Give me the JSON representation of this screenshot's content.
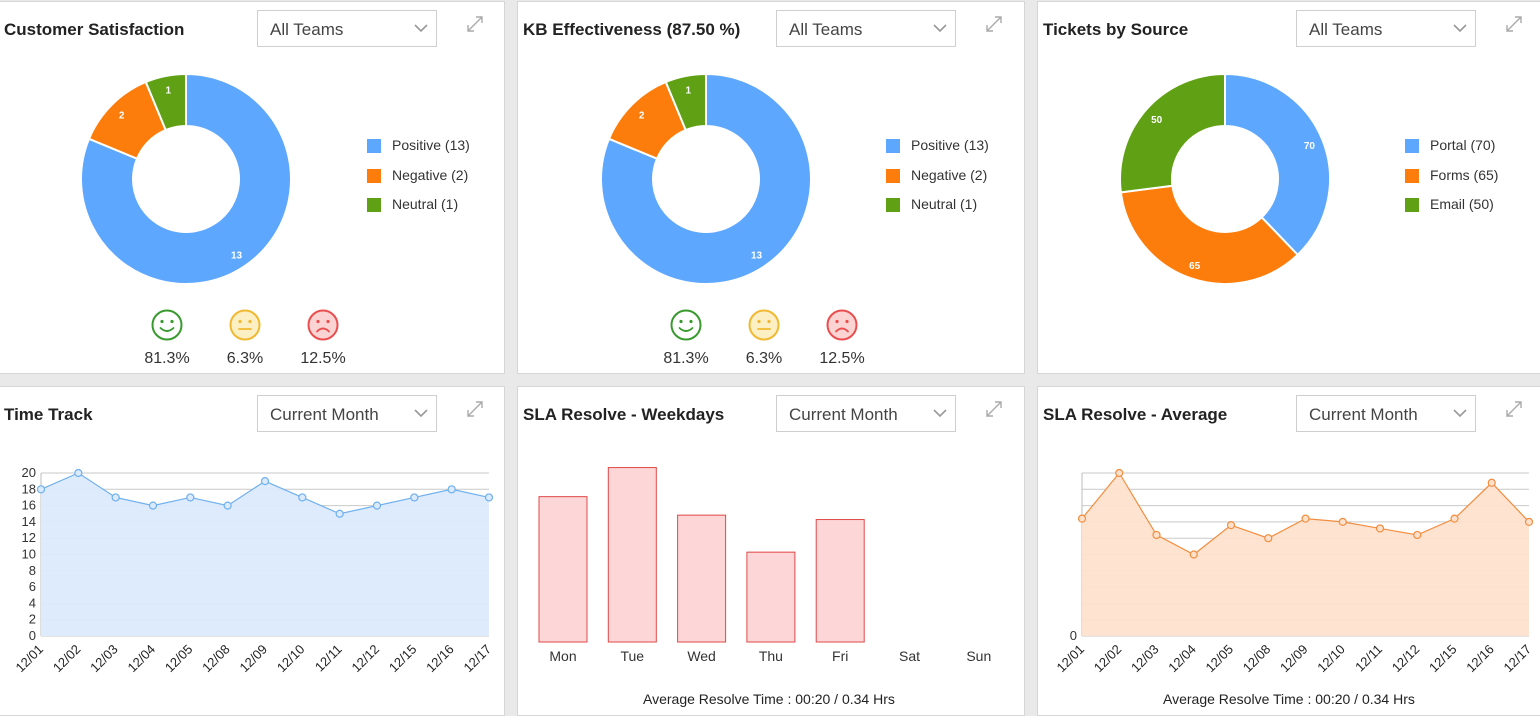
{
  "colors": {
    "positive": "#5ea7fe",
    "negative": "#fc7d0b",
    "neutral": "#60a014",
    "line_blue": "#6fb0ee",
    "fill_blue": "#dbeafc",
    "line_orange": "#f38d3f",
    "fill_orange": "#fde1cd",
    "bar_fill": "#fdd6d7",
    "bar_stroke": "#e04848",
    "happy": "#3a9a2f",
    "meh": "#f0b931",
    "sad": "#ea4f4f"
  },
  "panels": {
    "csat": {
      "title": "Customer Satisfaction",
      "filter": "All Teams",
      "legend": [
        {
          "label": "Positive (13)",
          "color": "#5ea7fe"
        },
        {
          "label": "Negative (2)",
          "color": "#fc7d0b"
        },
        {
          "label": "Neutral (1)",
          "color": "#60a014"
        }
      ],
      "faces": [
        {
          "icon": "happy-face-icon",
          "pct": "81.3%"
        },
        {
          "icon": "neutral-face-icon",
          "pct": "6.3%"
        },
        {
          "icon": "sad-face-icon",
          "pct": "12.5%"
        }
      ]
    },
    "kb": {
      "title": "KB Effectiveness (87.50 %)",
      "filter": "All Teams",
      "legend": [
        {
          "label": "Positive (13)",
          "color": "#5ea7fe"
        },
        {
          "label": "Negative (2)",
          "color": "#fc7d0b"
        },
        {
          "label": "Neutral (1)",
          "color": "#60a014"
        }
      ],
      "faces": [
        {
          "icon": "happy-face-icon",
          "pct": "81.3%"
        },
        {
          "icon": "neutral-face-icon",
          "pct": "6.3%"
        },
        {
          "icon": "sad-face-icon",
          "pct": "12.5%"
        }
      ]
    },
    "source": {
      "title": "Tickets by Source",
      "filter": "All Teams",
      "legend": [
        {
          "label": "Portal (70)",
          "color": "#5ea7fe"
        },
        {
          "label": "Forms (65)",
          "color": "#fc7d0b"
        },
        {
          "label": "Email (50)",
          "color": "#60a014"
        }
      ]
    },
    "timetrack": {
      "title": "Time Track",
      "filter": "Current Month"
    },
    "slaweek": {
      "title": "SLA Resolve - Weekdays",
      "filter": "Current Month",
      "footer": "Average Resolve Time : 00:20 / 0.34 Hrs"
    },
    "slaavg": {
      "title": "SLA Resolve - Average",
      "filter": "Current Month",
      "footer": "Average Resolve Time : 00:20 / 0.34 Hrs"
    }
  },
  "chart_data": [
    {
      "id": "csat",
      "type": "pie",
      "donut": true,
      "slices": [
        {
          "label": "Positive",
          "value": 13,
          "color": "#5ea7fe"
        },
        {
          "label": "Negative",
          "value": 2,
          "color": "#fc7d0b"
        },
        {
          "label": "Neutral",
          "value": 1,
          "color": "#60a014"
        }
      ],
      "title": "Customer Satisfaction",
      "legend": "right"
    },
    {
      "id": "kb",
      "type": "pie",
      "donut": true,
      "slices": [
        {
          "label": "Positive",
          "value": 13,
          "color": "#5ea7fe"
        },
        {
          "label": "Negative",
          "value": 2,
          "color": "#fc7d0b"
        },
        {
          "label": "Neutral",
          "value": 1,
          "color": "#60a014"
        }
      ],
      "title": "KB Effectiveness (87.50 %)",
      "legend": "right"
    },
    {
      "id": "source",
      "type": "pie",
      "donut": true,
      "slices": [
        {
          "label": "Portal",
          "value": 70,
          "color": "#5ea7fe"
        },
        {
          "label": "Forms",
          "value": 65,
          "color": "#fc7d0b"
        },
        {
          "label": "Email",
          "value": 50,
          "color": "#60a014"
        }
      ],
      "title": "Tickets by Source",
      "legend": "right"
    },
    {
      "id": "timetrack",
      "type": "area",
      "title": "Time Track",
      "x": [
        "12/01",
        "12/02",
        "12/03",
        "12/04",
        "12/05",
        "12/08",
        "12/09",
        "12/10",
        "12/11",
        "12/12",
        "12/15",
        "12/16",
        "12/17"
      ],
      "values": [
        18,
        20,
        17,
        16,
        17,
        16,
        19,
        17,
        15,
        16,
        17,
        18,
        17
      ],
      "ylim": [
        0,
        20
      ],
      "yticks": [
        0,
        2,
        4,
        6,
        8,
        10,
        12,
        14,
        16,
        18,
        20
      ],
      "grid": true
    },
    {
      "id": "slaweek",
      "type": "bar",
      "title": "SLA Resolve - Weekdays",
      "categories": [
        "Mon",
        "Tue",
        "Wed",
        "Thu",
        "Fri",
        "Sat",
        "Sun"
      ],
      "values": [
        16.5,
        19.8,
        14.4,
        10.2,
        13.9,
        0,
        0
      ],
      "ylim": [
        0,
        21
      ]
    },
    {
      "id": "slaavg",
      "type": "area",
      "title": "SLA Resolve - Average",
      "x": [
        "12/01",
        "12/02",
        "12/03",
        "12/04",
        "12/05",
        "12/08",
        "12/09",
        "12/10",
        "12/11",
        "12/12",
        "12/15",
        "12/16",
        "12/17"
      ],
      "values": [
        18,
        25,
        15.5,
        12.5,
        17,
        15,
        18,
        17.5,
        16.5,
        15.5,
        18,
        23.5,
        17.5
      ],
      "ylim": [
        0,
        25
      ],
      "yticks": [
        0
      ],
      "grid": true
    }
  ]
}
